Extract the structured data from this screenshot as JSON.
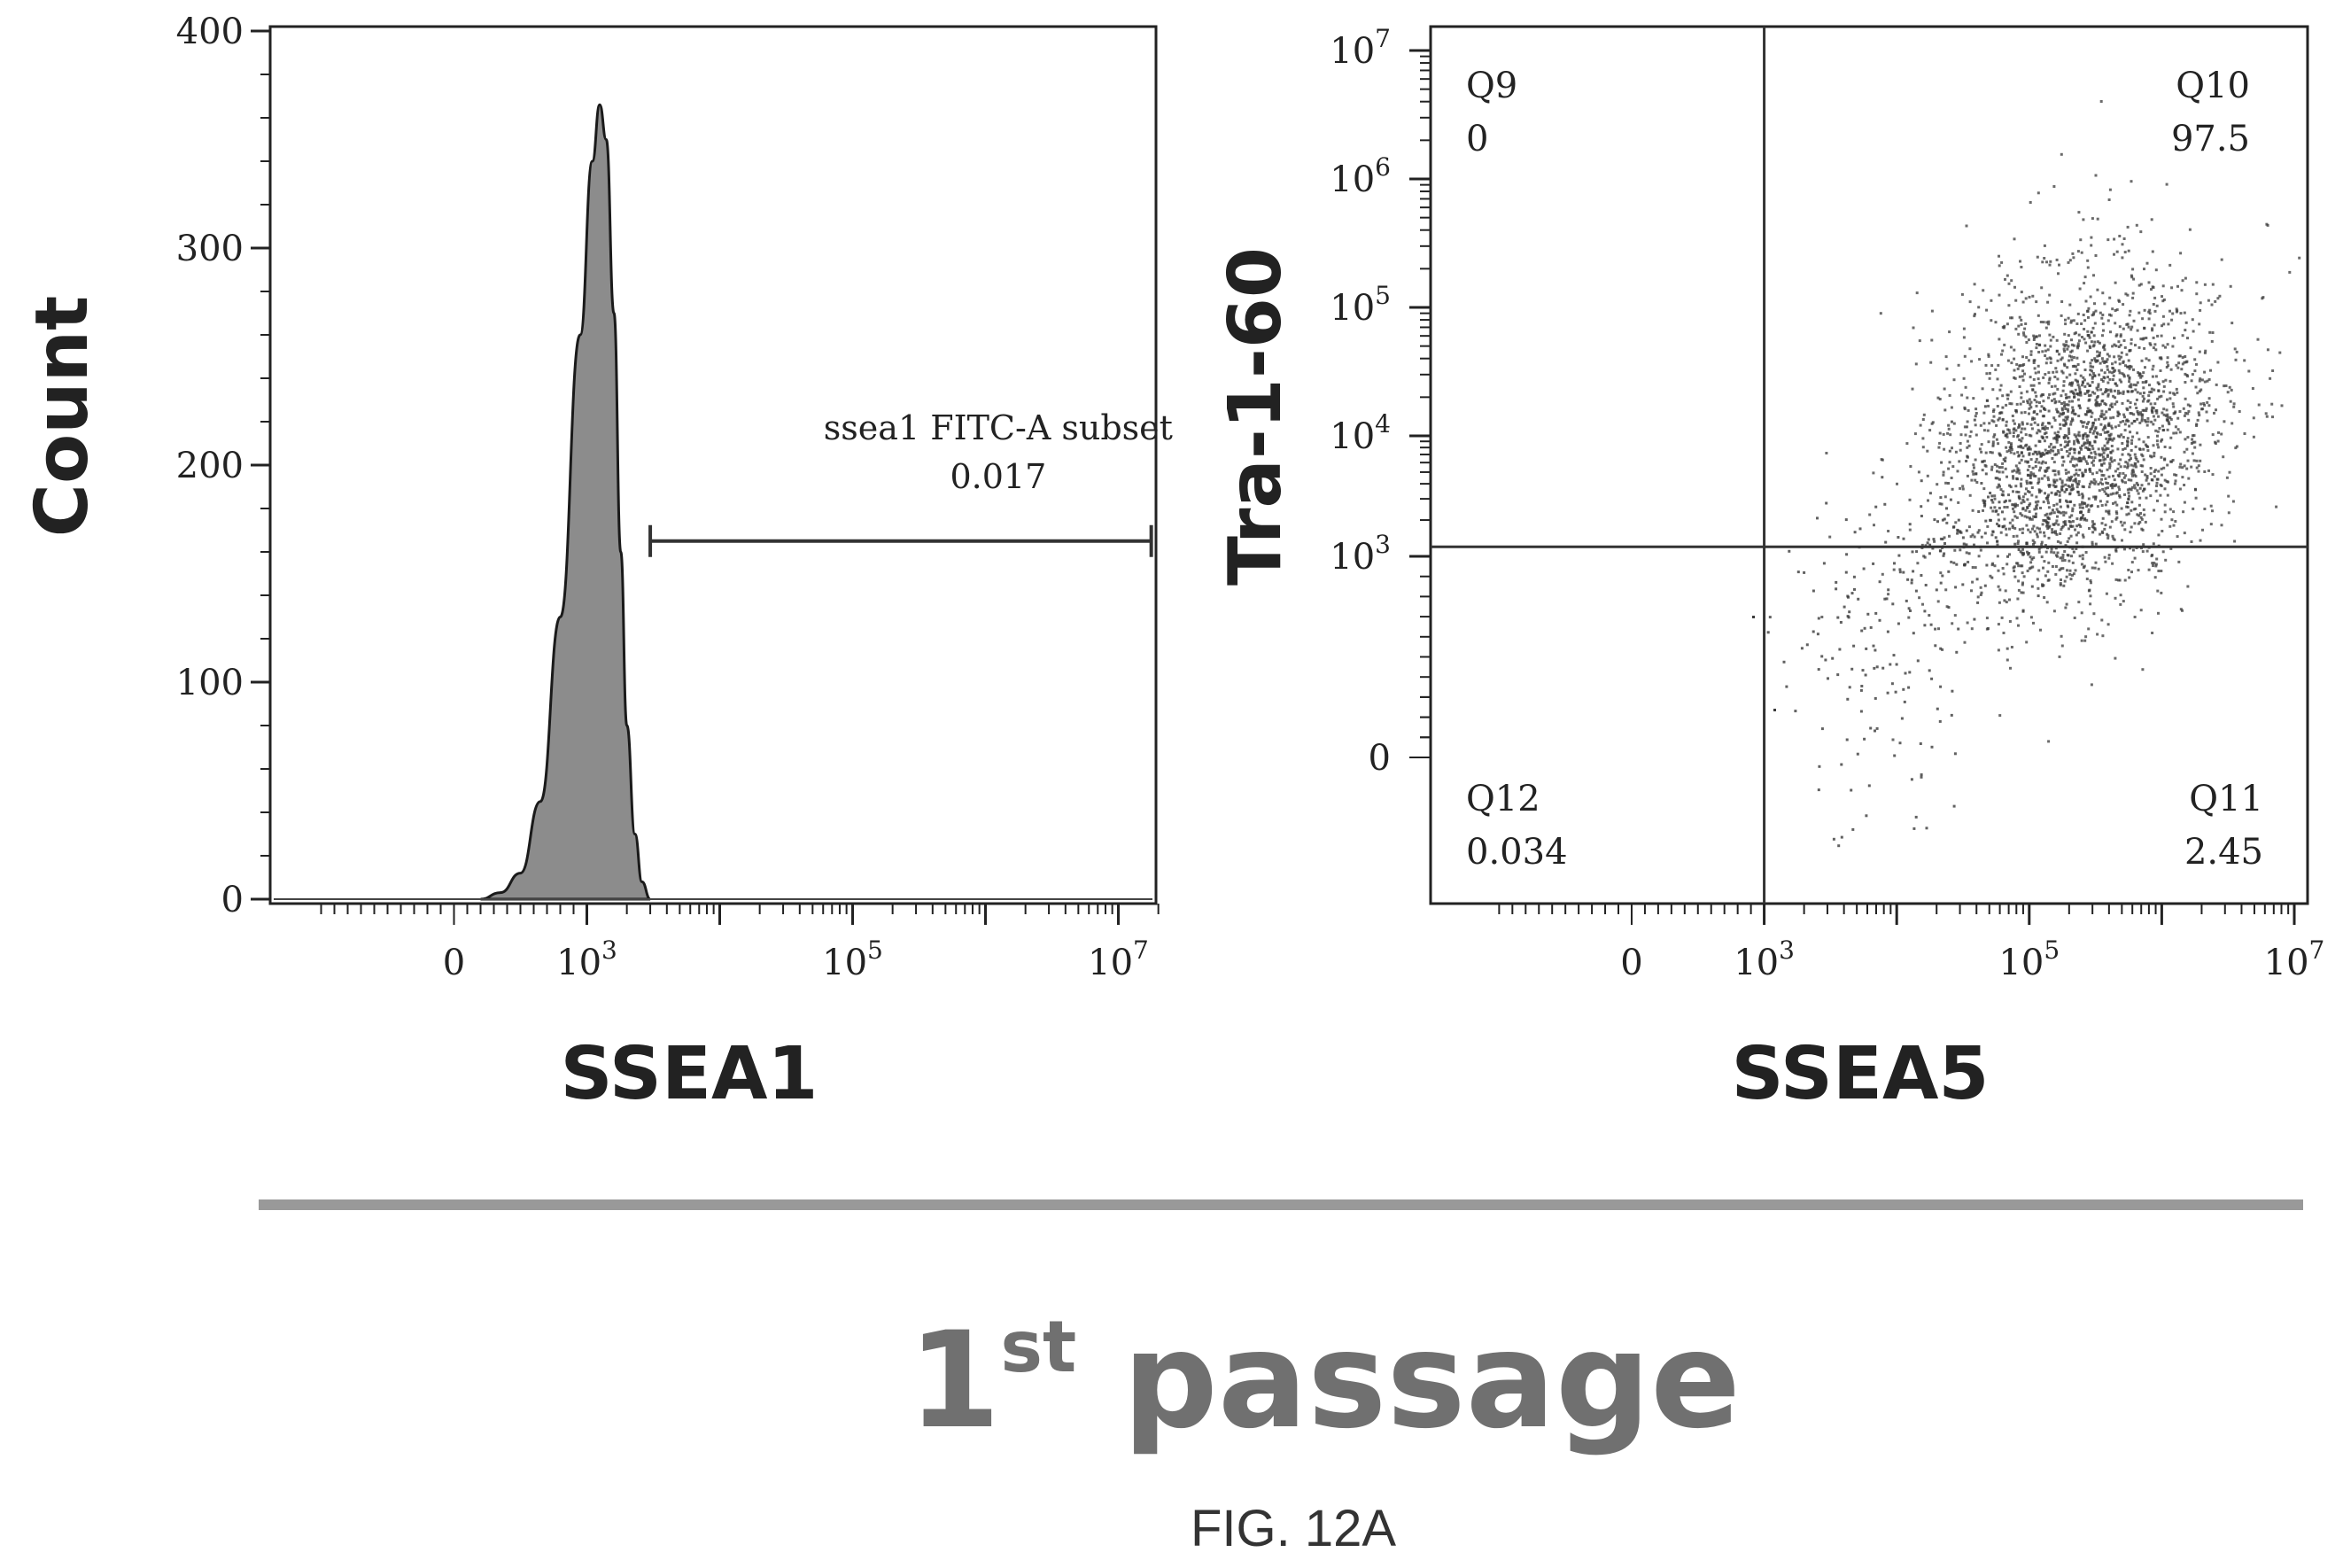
{
  "colors": {
    "axis": "#222222",
    "fill": "#8c8c8c",
    "points": "#3a3a3a",
    "divider": "#999999",
    "banner": "#707070"
  },
  "chart_data": [
    {
      "type": "histogram",
      "xlabel": "SSEA1",
      "ylabel": "Count",
      "x_scale": "biexponential",
      "xlim": [
        -1000,
        20000000
      ],
      "ylim": [
        0,
        400
      ],
      "y_ticks": [
        0,
        100,
        200,
        300,
        400
      ],
      "x_tick_labels": [
        {
          "value": 0,
          "base": "0",
          "exp": ""
        },
        {
          "value": 1000,
          "base": "10",
          "exp": "3"
        },
        {
          "value": 100000,
          "base": "10",
          "exp": "5"
        },
        {
          "value": 10000000,
          "base": "10",
          "exp": "7"
        }
      ],
      "curve": {
        "x": [
          200,
          350,
          500,
          650,
          800,
          950,
          1100,
          1250,
          1400,
          1600,
          1800,
          2000,
          2300,
          2600,
          3000
        ],
        "y": [
          0,
          3,
          12,
          45,
          130,
          260,
          340,
          366,
          350,
          270,
          160,
          80,
          30,
          8,
          0
        ]
      },
      "gate": {
        "name": "ssea1 FITC-A subset",
        "value": "0.017",
        "range": [
          3000,
          20000000
        ],
        "y": 165
      }
    },
    {
      "type": "scatter",
      "xlabel": "SSEA5",
      "ylabel": "Tra-1-60",
      "x_scale": "biexponential",
      "y_scale": "biexponential",
      "xlim": [
        -1000,
        10000000
      ],
      "ylim": [
        -300,
        10000000
      ],
      "x_tick_labels": [
        {
          "value": 0,
          "base": "0",
          "exp": ""
        },
        {
          "value": 1000,
          "base": "10",
          "exp": "3"
        },
        {
          "value": 100000,
          "base": "10",
          "exp": "5"
        },
        {
          "value": 10000000,
          "base": "10",
          "exp": "7"
        }
      ],
      "y_tick_labels": [
        {
          "value": 0,
          "base": "0",
          "exp": ""
        },
        {
          "value": 1000,
          "base": "10",
          "exp": "3"
        },
        {
          "value": 10000,
          "base": "10",
          "exp": "4"
        },
        {
          "value": 100000,
          "base": "10",
          "exp": "5"
        },
        {
          "value": 1000000,
          "base": "10",
          "exp": "6"
        },
        {
          "value": 10000000,
          "base": "10",
          "exp": "7"
        }
      ],
      "quadrant_split": {
        "x": 1000,
        "y": 1200
      },
      "quadrants": [
        {
          "name": "Q9",
          "value": "0",
          "pos": "top-left"
        },
        {
          "name": "Q10",
          "value": "97.5",
          "pos": "top-right"
        },
        {
          "name": "Q11",
          "value": "2.45",
          "pos": "bottom-right"
        },
        {
          "name": "Q12",
          "value": "0.034",
          "pos": "bottom-left"
        }
      ]
    }
  ],
  "banner": {
    "main": "1",
    "sup": "st",
    "rest": " passage"
  },
  "caption": "FIG. 12A"
}
